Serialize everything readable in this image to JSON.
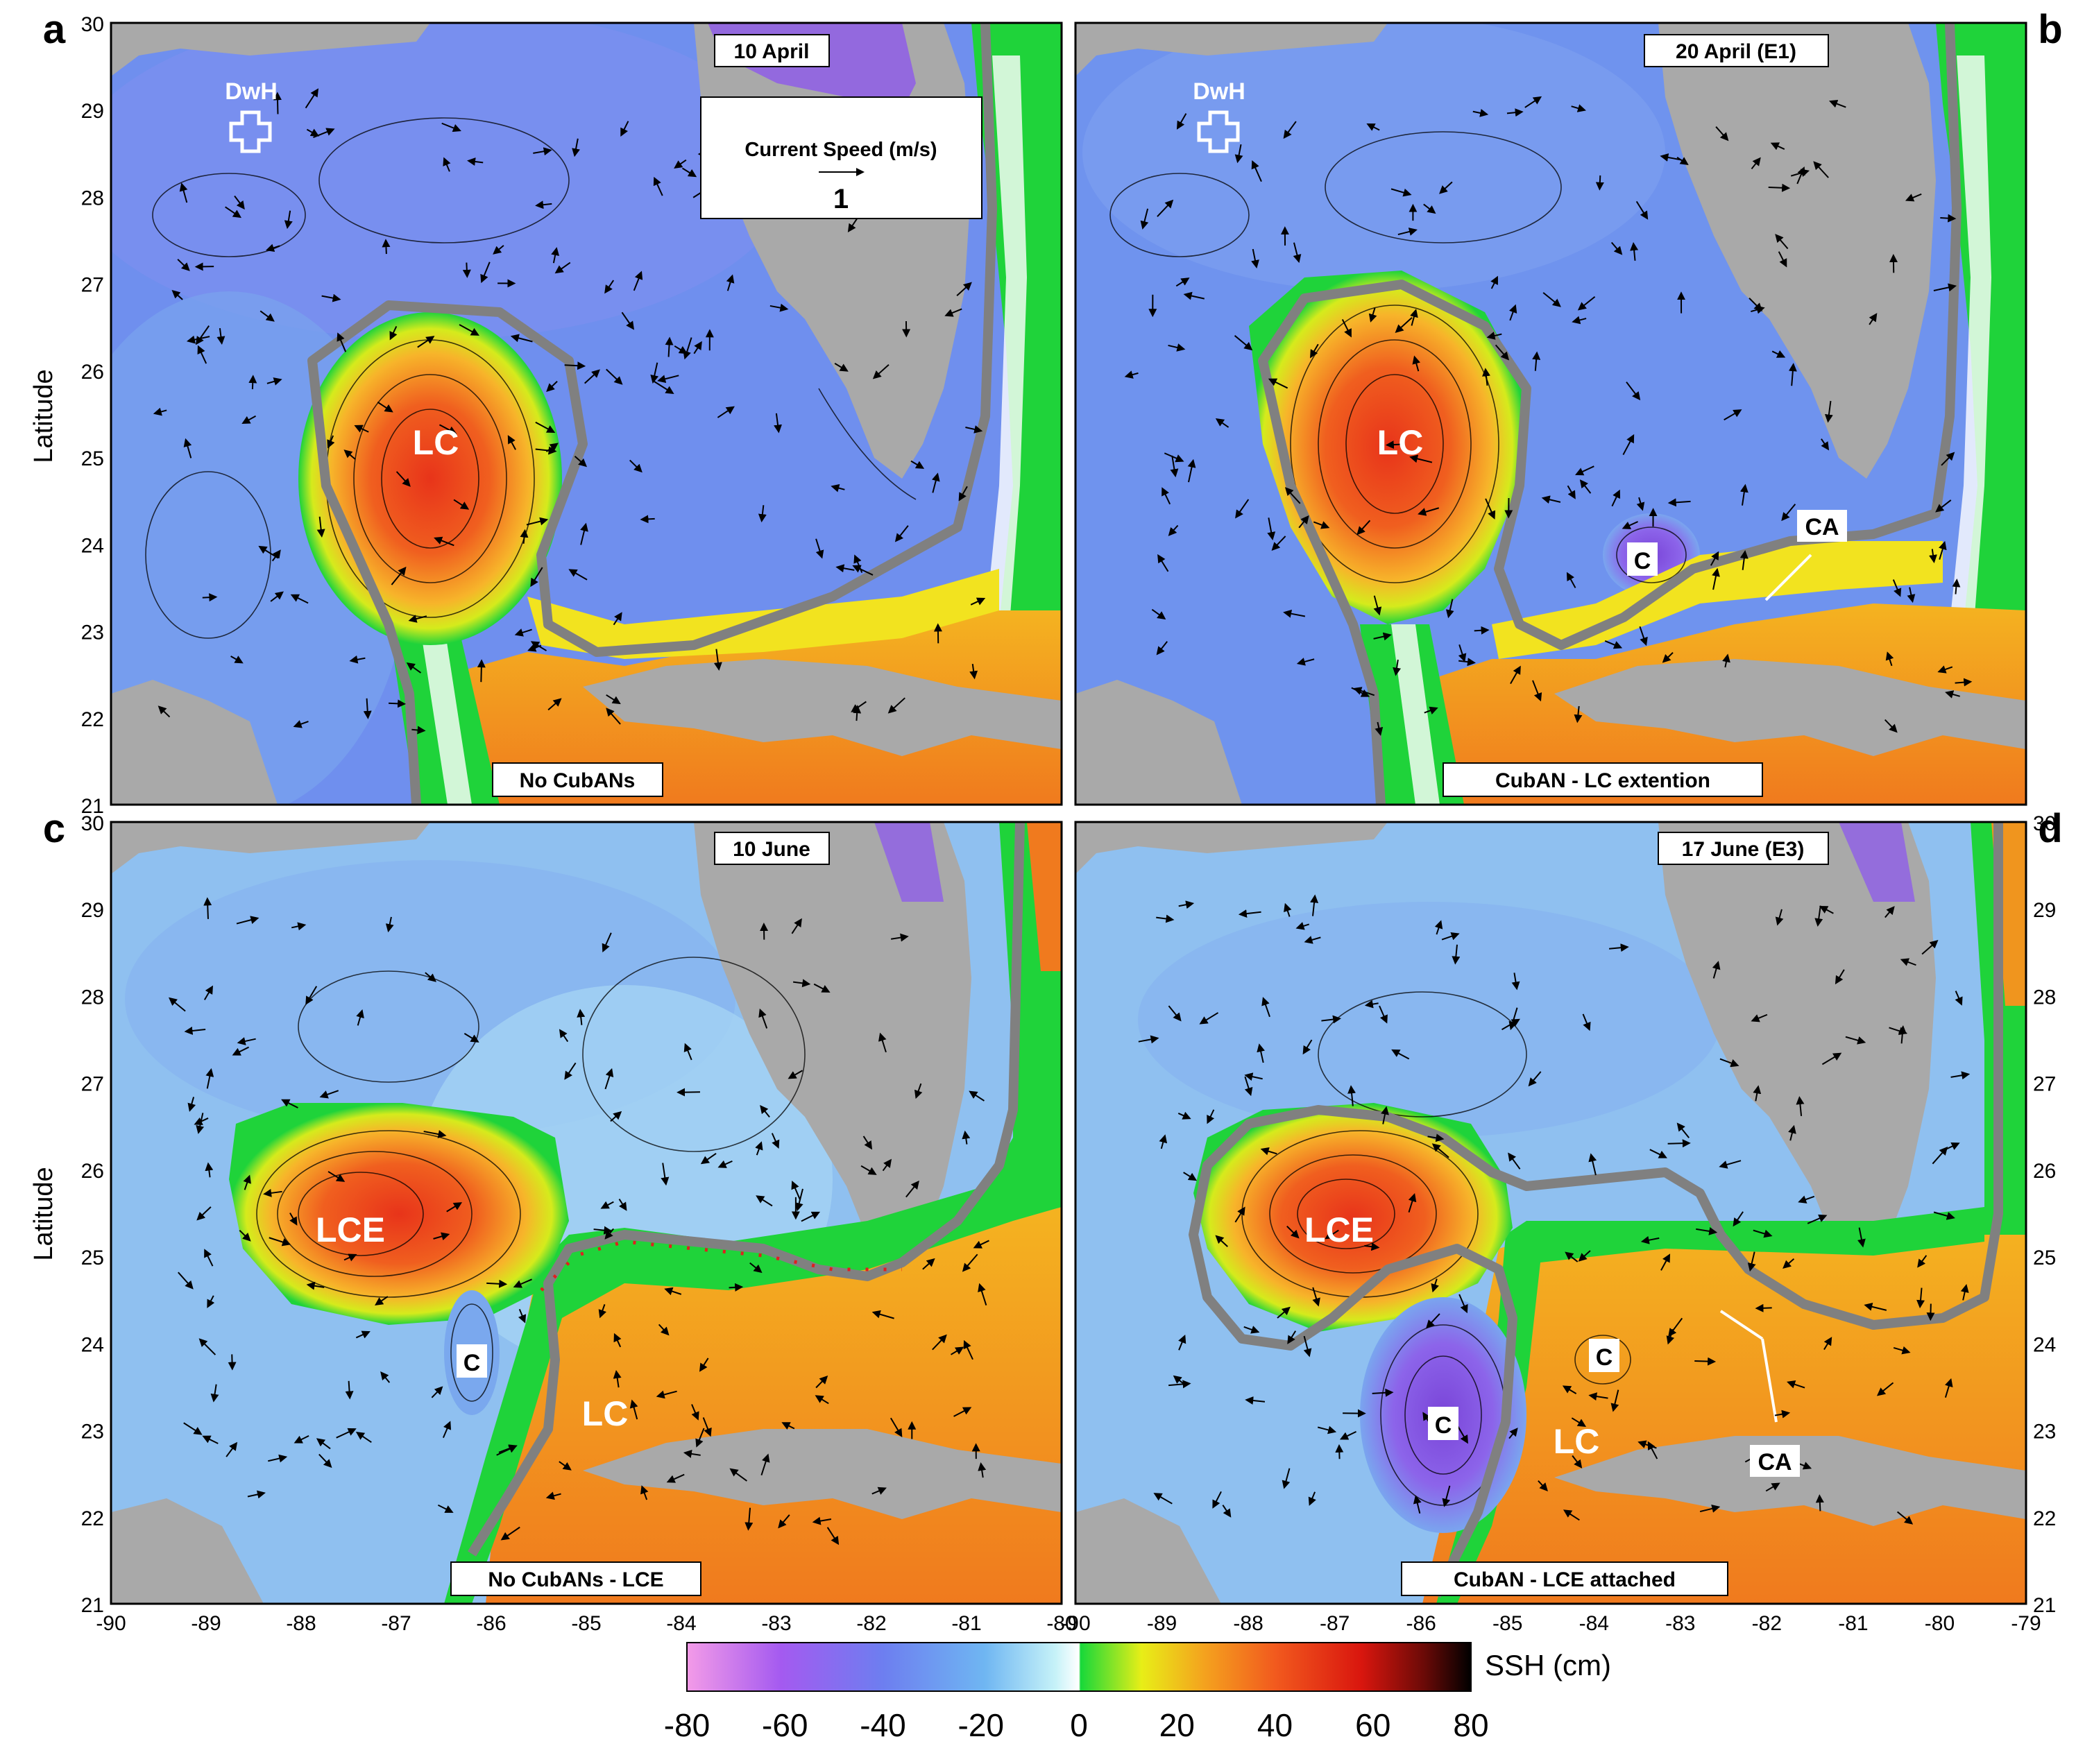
{
  "figure": {
    "y_axis_label": "Latitude",
    "legend_label": "SSH (cm)",
    "colorbar_ticks": [
      "-80",
      "-60",
      "-40",
      "-20",
      "0",
      "20",
      "40",
      "60",
      "80"
    ],
    "colorbar_stops": [
      {
        "offset": 0.0,
        "color": "#f39be8"
      },
      {
        "offset": 0.12,
        "color": "#a45af0"
      },
      {
        "offset": 0.25,
        "color": "#6d7ef0"
      },
      {
        "offset": 0.38,
        "color": "#6fb6f2"
      },
      {
        "offset": 0.47,
        "color": "#c6f2f8"
      },
      {
        "offset": 0.5,
        "color": "#ffffff"
      },
      {
        "offset": 0.502,
        "color": "#17d83a"
      },
      {
        "offset": 0.58,
        "color": "#e8ee17"
      },
      {
        "offset": 0.66,
        "color": "#f4a21e"
      },
      {
        "offset": 0.75,
        "color": "#f25a1e"
      },
      {
        "offset": 0.86,
        "color": "#d9160e"
      },
      {
        "offset": 0.94,
        "color": "#6b0a07"
      },
      {
        "offset": 1.0,
        "color": "#000000"
      }
    ],
    "colors": {
      "land": "#a9a9a9",
      "contour_line": "#000000",
      "front_line": "#808080",
      "open_water_blue": "#6f93ec"
    },
    "lat_ticks": [
      "30",
      "29",
      "28",
      "27",
      "26",
      "25",
      "24",
      "23",
      "22",
      "21"
    ],
    "lon_ticks_left": [
      "-90",
      "-89",
      "-88",
      "-87",
      "-86",
      "-85",
      "-84",
      "-83",
      "-82",
      "-81",
      "-80"
    ],
    "lon_ticks_right": [
      "-90",
      "-89",
      "-88",
      "-87",
      "-86",
      "-85",
      "-84",
      "-83",
      "-82",
      "-81",
      "-80",
      "-79"
    ]
  },
  "panels": {
    "a": {
      "letter": "a",
      "date": "10 April",
      "bottom_note": "No CubANs",
      "labels": {
        "lc": "LC",
        "dwh": "DwH"
      },
      "current_legend": {
        "title": "Current Speed (m/s)",
        "value": "1"
      }
    },
    "b": {
      "letter": "b",
      "date": "20 April (E1)",
      "bottom_note": "CubAN - LC extention",
      "labels": {
        "lc": "LC",
        "dwh": "DwH",
        "c": "C",
        "ca": "CA"
      }
    },
    "c": {
      "letter": "c",
      "date": "10 June",
      "bottom_note": "No CubANs - LCE",
      "labels": {
        "lce": "LCE",
        "c": "C",
        "lc": "LC"
      }
    },
    "d": {
      "letter": "d",
      "date": "17 June (E3)",
      "bottom_note": "CubAN - LCE attached",
      "labels": {
        "lce": "LCE",
        "c1": "C",
        "c2": "C",
        "lc": "LC",
        "ca": "CA"
      }
    }
  }
}
